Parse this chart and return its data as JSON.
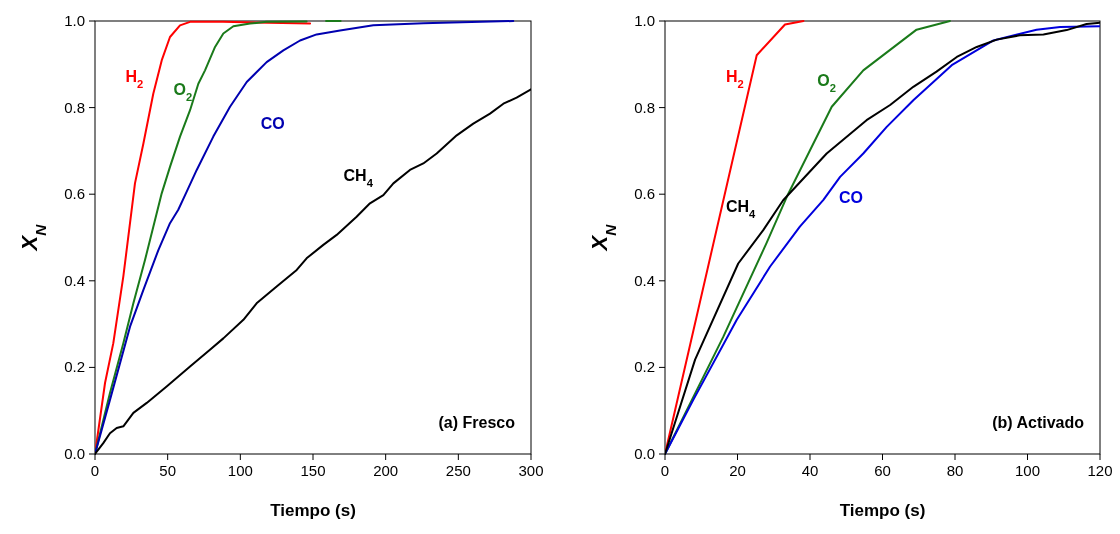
{
  "chart_data": [
    {
      "type": "line",
      "xlabel": "Tiempo (s)",
      "ylabel": "X$_{N}$",
      "annotations": [
        "(a) Fresco"
      ],
      "xlim": [
        0,
        300
      ],
      "xticks": [
        0,
        50,
        100,
        150,
        200,
        250,
        300
      ],
      "ylim": [
        0,
        1
      ],
      "yticks": [
        {
          "value": 0,
          "label": "0.0"
        },
        {
          "value": 0.2,
          "label": "0.2"
        },
        {
          "value": 0.4,
          "label": "0.4"
        },
        {
          "value": 0.6,
          "label": "0.6"
        },
        {
          "value": 0.8,
          "label": "0.8"
        },
        {
          "value": 1,
          "label": "1.0"
        }
      ],
      "grid": false,
      "series": [
        {
          "name": "H$_{2}$",
          "color": "#ff0000",
          "x": [
            0,
            6.9,
            12.6,
            19.5,
            27.5,
            33.3,
            40.1,
            45.9,
            51.6,
            58.5,
            65.4,
            88,
            148
          ],
          "values": [
            0,
            0.164,
            0.256,
            0.41,
            0.625,
            0.717,
            0.832,
            0.909,
            0.963,
            0.99,
            0.998,
            0.998,
            0.994
          ]
        },
        {
          "name": "O$_{2}$",
          "color": "#1a7a1a",
          "x": [
            0,
            10.3,
            19.5,
            26.4,
            34.4,
            45.9,
            51.6,
            58.5,
            65.4,
            71.1,
            75.7,
            82.6,
            88.3,
            95.2,
            106.7,
            118,
            145.6,
            152,
            159,
            169
          ],
          "values": [
            0,
            0.141,
            0.256,
            0.348,
            0.448,
            0.602,
            0.663,
            0.733,
            0.794,
            0.855,
            0.886,
            0.94,
            0.971,
            0.988,
            0.994,
            0.998,
            0.999,
            null,
            1.0,
            1.0
          ]
        },
        {
          "name": "CO",
          "color": "#0000b0",
          "x": [
            0,
            10.3,
            24.1,
            33.3,
            43.6,
            51.6,
            57.3,
            63.1,
            70,
            81.4,
            92.9,
            104.4,
            118.1,
            129.6,
            141.1,
            152.5,
            168.6,
            191.5,
            225.9,
            287.8
          ],
          "values": [
            0,
            0.125,
            0.294,
            0.379,
            0.471,
            0.533,
            0.564,
            0.606,
            0.656,
            0.733,
            0.802,
            0.859,
            0.905,
            0.932,
            0.955,
            0.969,
            0.978,
            0.99,
            0.995,
            1.0
          ]
        },
        {
          "name": "CH$_{4}$",
          "color": "#000000",
          "x": [
            0,
            5.7,
            10.3,
            14.9,
            19.5,
            26.4,
            35.6,
            49.3,
            65.4,
            79.1,
            88.3,
            102.1,
            111.2,
            125,
            138.8,
            145.6,
            157.1,
            166.3,
            180,
            189.2,
            198.4,
            205.3,
            216.7,
            225.9,
            235.1,
            248.9,
            260.3,
            271.8,
            281,
            290.1,
            300
          ],
          "values": [
            0,
            0.025,
            0.048,
            0.06,
            0.064,
            0.095,
            0.118,
            0.156,
            0.202,
            0.241,
            0.267,
            0.31,
            0.348,
            0.387,
            0.425,
            0.452,
            0.483,
            0.506,
            0.548,
            0.579,
            0.598,
            0.625,
            0.656,
            0.671,
            0.694,
            0.736,
            0.763,
            0.786,
            0.809,
            0.823,
            0.842
          ]
        }
      ]
    },
    {
      "type": "line",
      "xlabel": "Tiempo (s)",
      "ylabel": "X$_{N}$",
      "annotations": [
        "(b) Activado"
      ],
      "xlim": [
        0,
        120
      ],
      "xticks": [
        0,
        20,
        40,
        60,
        80,
        100,
        120
      ],
      "ylim": [
        0,
        1
      ],
      "yticks": [
        {
          "value": 0,
          "label": "0.0"
        },
        {
          "value": 0.2,
          "label": "0.2"
        },
        {
          "value": 0.4,
          "label": "0.4"
        },
        {
          "value": 0.6,
          "label": "0.6"
        },
        {
          "value": 0.8,
          "label": "0.8"
        },
        {
          "value": 1,
          "label": "1.0"
        }
      ],
      "grid": false,
      "series": [
        {
          "name": "H$_{2}$",
          "color": "#ff0000",
          "x": [
            0,
            25.3,
            33.1,
            38.2
          ],
          "values": [
            0,
            0.921,
            0.992,
            1.0
          ]
        },
        {
          "name": "O$_{2}$",
          "color": "#1a7a1a",
          "x": [
            0,
            16.1,
            28,
            33.6,
            46,
            54.7,
            69.4,
            78.6
          ],
          "values": [
            0,
            0.271,
            0.487,
            0.594,
            0.802,
            0.886,
            0.98,
            1.0
          ]
        },
        {
          "name": "CO",
          "color": "#0000dd",
          "x": [
            0,
            7.8,
            19.8,
            29,
            37.2,
            43.7,
            48.3,
            54.7,
            61.1,
            68.5,
            79.1,
            90.6,
            102.5,
            109,
            120
          ],
          "values": [
            0,
            0.125,
            0.31,
            0.433,
            0.525,
            0.587,
            0.64,
            0.694,
            0.755,
            0.817,
            0.898,
            0.955,
            0.98,
            0.986,
            0.988
          ]
        },
        {
          "name": "CH$_{4}$",
          "color": "#000000",
          "x": [
            0,
            8.3,
            20.2,
            27.1,
            32.6,
            44.6,
            55.6,
            62.1,
            68.5,
            74.9,
            80.5,
            86,
            91.5,
            97.9,
            104.4,
            110.8,
            116.3,
            120
          ],
          "values": [
            0,
            0.218,
            0.44,
            0.517,
            0.586,
            0.694,
            0.771,
            0.806,
            0.848,
            0.883,
            0.917,
            0.94,
            0.957,
            0.967,
            0.969,
            0.979,
            0.993,
            0.996
          ]
        }
      ]
    }
  ]
}
